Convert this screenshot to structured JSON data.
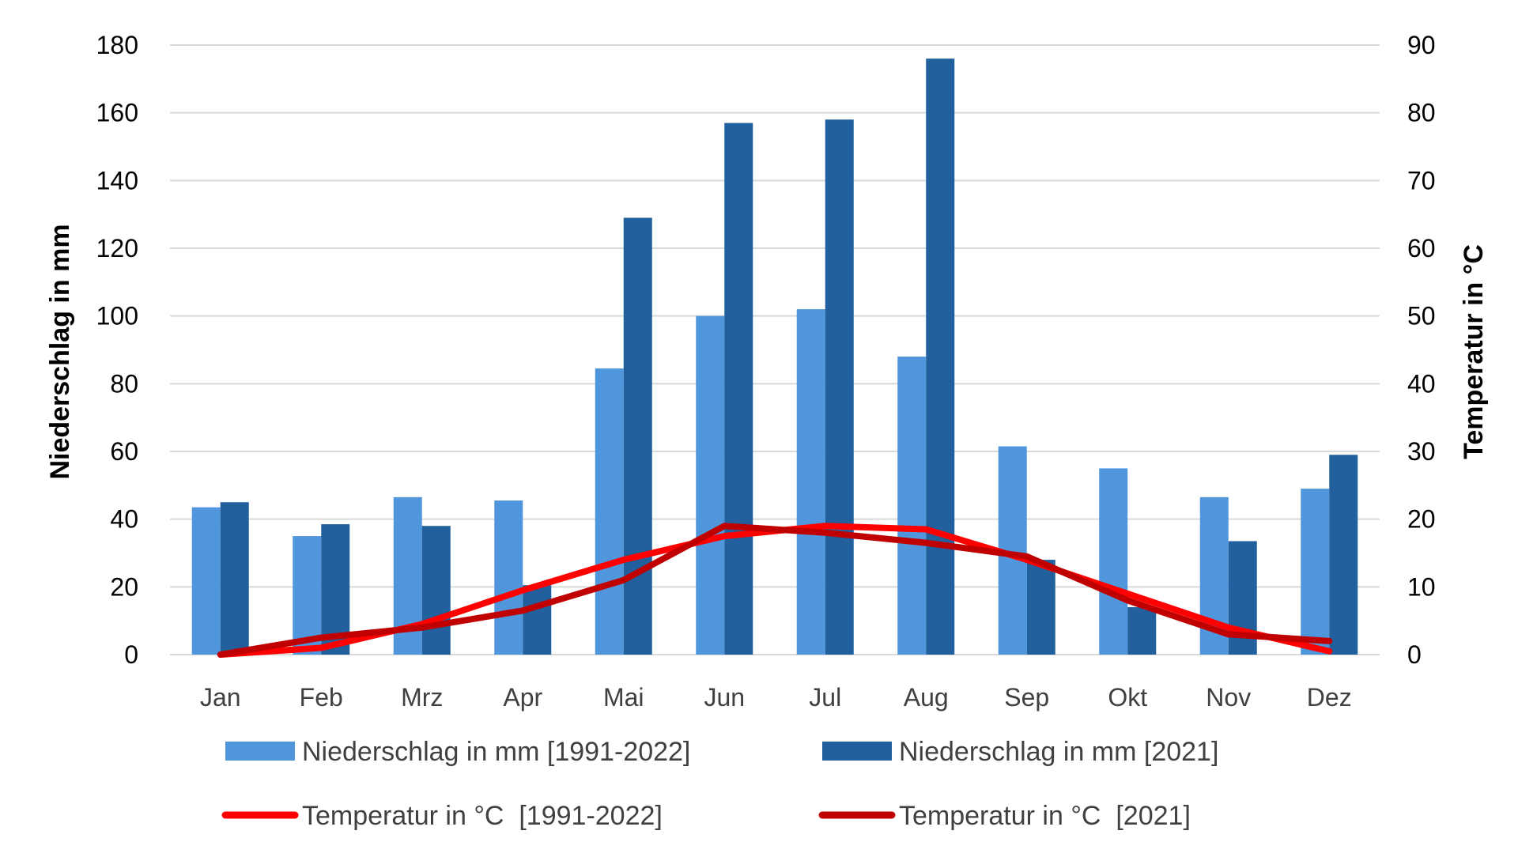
{
  "chart_data": {
    "type": "bar",
    "categories": [
      "Jan",
      "Feb",
      "Mrz",
      "Apr",
      "Mai",
      "Jun",
      "Jul",
      "Aug",
      "Sep",
      "Okt",
      "Nov",
      "Dez"
    ],
    "bar_series": [
      {
        "name": "Niederschlag in mm [1991-2022]",
        "color": "#5096DC",
        "axis": "left",
        "values": [
          43.5,
          35,
          46.5,
          45.5,
          84.5,
          100,
          102,
          88,
          61.5,
          55,
          46.5,
          49
        ]
      },
      {
        "name": "Niederschlag in mm [2021]",
        "color": "#21609D",
        "axis": "left",
        "values": [
          45,
          38.5,
          38,
          20.5,
          129,
          157,
          158,
          176,
          28,
          14,
          33.5,
          59
        ]
      }
    ],
    "line_series": [
      {
        "name": "Temperatur in °C  [1991-2022]",
        "color": "#FF0000",
        "axis": "right",
        "values": [
          0,
          1,
          4.5,
          9.5,
          14,
          17.5,
          19,
          18.5,
          14,
          9,
          4,
          0.5
        ]
      },
      {
        "name": "Temperatur in °C  [2021]",
        "color": "#C00000",
        "axis": "right",
        "values": [
          0,
          2.5,
          4,
          6.5,
          11,
          19,
          18,
          16.5,
          14.5,
          8,
          3,
          2
        ]
      }
    ],
    "ylabel": "Niederschlag in mm",
    "ylabel_right": "Temperatur in °C",
    "ylim": [
      0,
      180
    ],
    "ylim_right": [
      0,
      90
    ],
    "yticks": [
      "0",
      "20",
      "40",
      "60",
      "80",
      "100",
      "120",
      "140",
      "160",
      "180"
    ],
    "yticks_right": [
      "0",
      "10",
      "20",
      "30",
      "40",
      "50",
      "60",
      "70",
      "80",
      "90"
    ],
    "grid": "horizontal",
    "legend": "bottom"
  }
}
